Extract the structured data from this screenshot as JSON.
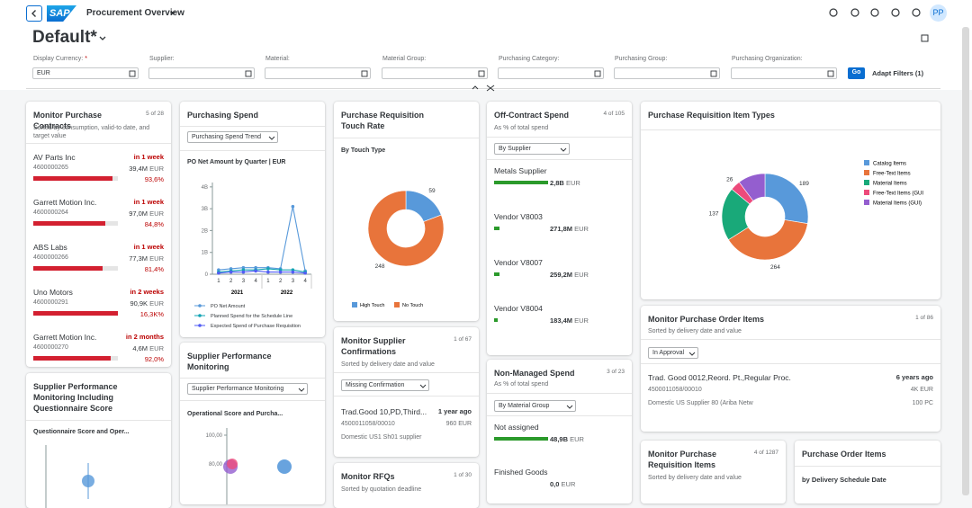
{
  "header": {
    "logo": "SAP",
    "app_title": "Procurement Overview",
    "avatar": "PP"
  },
  "variant": "Default*",
  "filter_bar": {
    "filters": [
      {
        "label": "Display Currency:",
        "required_mark": "*",
        "value": "EUR"
      },
      {
        "label": "Supplier:"
      },
      {
        "label": "Material:"
      },
      {
        "label": "Material Group:"
      },
      {
        "label": "Purchasing Category:"
      },
      {
        "label": "Purchasing Group:"
      },
      {
        "label": "Purchasing Organization:"
      }
    ],
    "go": "Go",
    "adapt_filters": "Adapt Filters (1)"
  },
  "cards": {
    "contracts": {
      "title": "Monitor Purchase Contracts",
      "count": "5 of 28",
      "subtitle": "Sorted by consumption, valid-to date, and target value",
      "items": [
        {
          "name": "AV Parts Inc",
          "id": "4600000265",
          "due": "in 1 week",
          "amount": "39,4M",
          "currency": "EUR",
          "percent": 93.6,
          "percent_label": "93,6%"
        },
        {
          "name": "Garrett Motion Inc.",
          "id": "4600000264",
          "due": "in 1 week",
          "amount": "97,0M",
          "currency": "EUR",
          "percent": 84.8,
          "percent_label": "84,8%"
        },
        {
          "name": "ABS Labs",
          "id": "4600000266",
          "due": "in 1 week",
          "amount": "77,3M",
          "currency": "EUR",
          "percent": 81.4,
          "percent_label": "81,4%"
        },
        {
          "name": "Uno Motors",
          "id": "4600000291",
          "due": "in 2 weeks",
          "amount": "90,9K",
          "currency": "EUR",
          "percent": 16300,
          "percent_label": "16,3K%"
        },
        {
          "name": "Garrett Motion Inc.",
          "id": "4600000270",
          "due": "in 2 months",
          "amount": "4,6M",
          "currency": "EUR",
          "percent": 92.0,
          "percent_label": "92,0%"
        }
      ]
    },
    "purchasing_spend": {
      "title": "Purchasing Spend",
      "dropdown": "Purchasing Spend Trend",
      "chart": {
        "type": "line",
        "title": "PO Net Amount by Quarter | EUR",
        "categories": [
          "1",
          "2",
          "3",
          "4",
          "1",
          "2",
          "3",
          "4"
        ],
        "groups": [
          {
            "label": "2021",
            "size": 4
          },
          {
            "label": "2022",
            "size": 4
          }
        ],
        "ylim": [
          0,
          4.2
        ],
        "yticks": [
          0,
          {
            "value": 1,
            "label": "1B"
          },
          {
            "value": 2,
            "label": "2B"
          },
          {
            "value": 3,
            "label": "3B"
          },
          {
            "value": 4,
            "label": "4B"
          }
        ],
        "series": [
          {
            "name": "PO Net Amount",
            "color": "#5899da",
            "values": [
              0.2,
              0.25,
              0.3,
              0.3,
              0.3,
              0.25,
              3.1,
              0.15
            ]
          },
          {
            "name": "Planned Spend for the Schedule Line",
            "color": "#13a4b4",
            "values": [
              0.1,
              0.15,
              0.2,
              0.2,
              0.25,
              0.2,
              0.2,
              0.1
            ]
          },
          {
            "name": "Expected Spend of Purchase Requisition",
            "color": "#525df4",
            "values": [
              0.05,
              0.1,
              0.1,
              0.15,
              0.1,
              0.1,
              0.1,
              0.05
            ]
          }
        ]
      }
    },
    "touch_rate": {
      "title": "Purchase Requisition Touch Rate",
      "chart": {
        "type": "donut",
        "title": "By Touch Type",
        "categories": [
          "High Touch",
          "No Touch"
        ],
        "values": [
          59,
          248
        ],
        "colors": [
          "#5899da",
          "#e8743b"
        ]
      }
    },
    "off_contract": {
      "title": "Off-Contract Spend",
      "count": "4 of 105",
      "subtitle": "As % of total spend",
      "dropdown": "By Supplier",
      "items": [
        {
          "name": "Metals Supplier",
          "amount": 2800000000,
          "amount_label": "2,8B",
          "currency": "EUR"
        },
        {
          "name": "Vendor V8003",
          "amount": 271800000,
          "amount_label": "271,8M",
          "currency": "EUR"
        },
        {
          "name": "Vendor V8007",
          "amount": 259200000,
          "amount_label": "259,2M",
          "currency": "EUR"
        },
        {
          "name": "Vendor V8004",
          "amount": 183400000,
          "amount_label": "183,4M",
          "currency": "EUR"
        }
      ]
    },
    "item_types": {
      "title": "Purchase Requisition Item Types",
      "chart": {
        "type": "donut",
        "categories": [
          "Catalog Items",
          "Free-Text Items",
          "Material Items",
          "Free-Text Items (GUI",
          "Material Items (GUI)"
        ],
        "values": [
          189,
          264,
          137,
          26,
          70
        ],
        "value_labels": [
          "189",
          "264",
          "137",
          "26",
          null
        ],
        "colors": [
          "#5899da",
          "#e8743b",
          "#19a979",
          "#ed4a7b",
          "#945ecf"
        ]
      }
    },
    "supplier_perf_q": {
      "title": "Supplier Performance Monitoring Including Questionnaire Score",
      "chart_title": "Questionnaire Score and Oper..."
    },
    "supplier_perf": {
      "title": "Supplier Performance Monitoring",
      "dropdown": "Supplier Performance Monitoring",
      "chart": {
        "title": "Operational Score and Purcha...",
        "yticks": [
          {
            "value": 100,
            "label": "100,00"
          },
          {
            "value": 80,
            "label": "80,00"
          }
        ]
      }
    },
    "confirmations": {
      "title": "Monitor Supplier Confirmations",
      "count": "1 of 67",
      "subtitle": "Sorted by delivery date and value",
      "dropdown": "Missing Confirmation",
      "item": {
        "name": "Trad.Good 10,PD,Third...",
        "age": "1 year ago",
        "id": "4500011058/00010",
        "amount": "960 EUR",
        "supplier": "Domestic US1 Sh01 supplier"
      }
    },
    "rfqs": {
      "title": "Monitor RFQs",
      "count": "1 of 30",
      "subtitle": "Sorted by quotation deadline"
    },
    "non_managed": {
      "title": "Non-Managed Spend",
      "count": "3 of 23",
      "subtitle": "As % of total spend",
      "dropdown": "By Material Group",
      "items": [
        {
          "name": "Not assigned",
          "amount": 48900000000,
          "amount_label": "48,9B",
          "currency": "EUR"
        },
        {
          "name": "Finished Goods",
          "amount": 0,
          "amount_label": "0,0",
          "currency": "EUR"
        }
      ]
    },
    "po_items": {
      "title": "Monitor Purchase Order Items",
      "count": "1 of 86",
      "subtitle": "Sorted by delivery date and value",
      "dropdown": "In Approval",
      "item": {
        "name": "Trad. Good 0012,Reord. Pt.,Regular Proc.",
        "age": "6 years ago",
        "id": "4500011058/00010",
        "amount": "4K EUR",
        "supplier": "Domestic US Supplier 80 (Ariba Netw",
        "quantity": "100 PC"
      }
    },
    "pr_items": {
      "title": "Monitor Purchase Requisition Items",
      "count": "4 of 1287",
      "subtitle": "Sorted by delivery date and value"
    },
    "po_schedule": {
      "title": "Purchase Order Items",
      "subtitle": "by Delivery Schedule Date"
    }
  }
}
